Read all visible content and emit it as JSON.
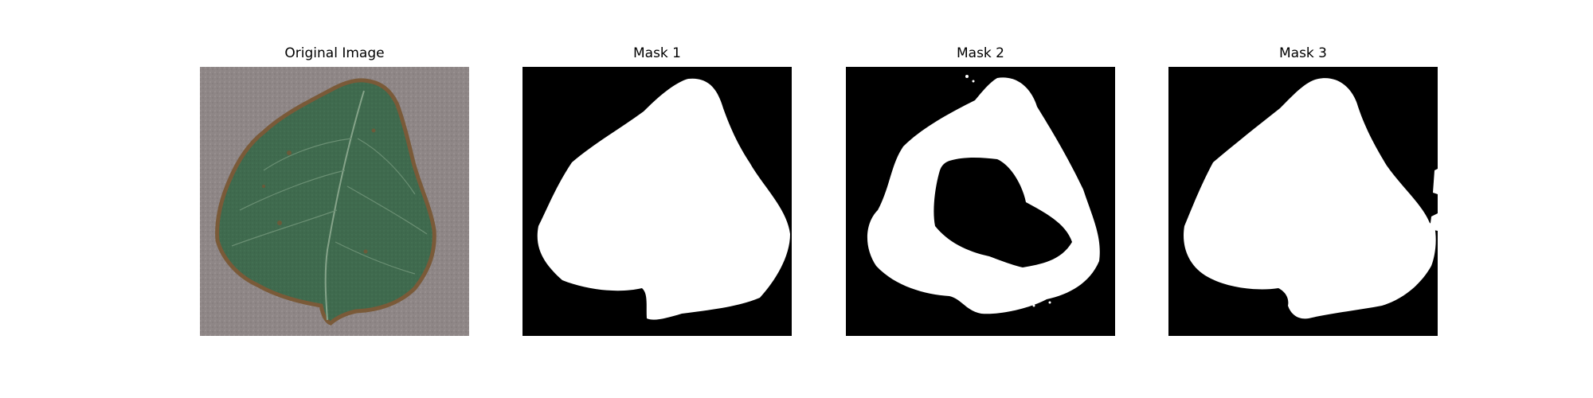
{
  "figure": {
    "panels": [
      {
        "title": "Original Image"
      },
      {
        "title": "Mask 1"
      },
      {
        "title": "Mask 2"
      },
      {
        "title": "Mask 3"
      }
    ]
  },
  "colors": {
    "background": "#ffffff",
    "mask_background": "#000000",
    "mask_foreground": "#ffffff",
    "leaf": "#3f6a4e",
    "leaf_edge": "#7a5a38",
    "paper": "#8e8686"
  }
}
